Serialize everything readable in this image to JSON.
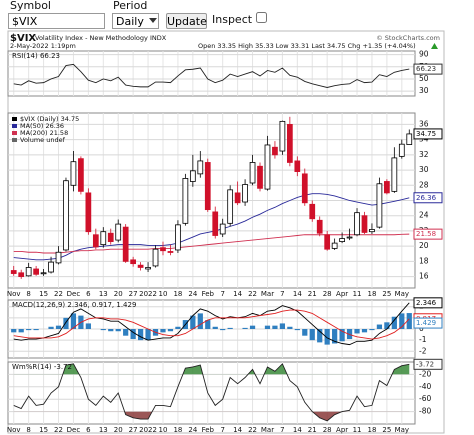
{
  "form": {
    "symbol_label": "Symbol",
    "symbol": "$VIX",
    "period_label": "Period",
    "period": "Daily",
    "button": "Update",
    "inspect": "Inspect"
  },
  "header": {
    "title": "$VIX",
    "subtitle": "Volatility Index - New Methodology",
    "exchange": "INDX",
    "copyright": "© StockCharts.com",
    "timestamp": "2-May-2022 1:19pm",
    "quote": "Open 33.35 High 35.33 Low 33.31 Last 34.75 Chg +1.35 (+4.04%)"
  },
  "chart_data": [
    {
      "type": "line",
      "title": "RSI(14) 66.23",
      "ylim": [
        22,
        96
      ],
      "yticks": [
        30,
        50,
        70,
        90
      ],
      "grid": true,
      "series": [
        {
          "color": "#222222",
          "values": [
            42,
            40,
            47,
            43,
            44,
            50,
            54,
            72,
            74,
            62,
            48,
            44,
            50,
            47,
            53,
            40,
            38,
            37,
            37,
            45,
            45,
            44,
            55,
            65,
            66,
            68,
            50,
            44,
            48,
            58,
            54,
            58,
            62,
            55,
            64,
            61,
            68,
            56,
            53,
            46,
            42,
            39,
            36,
            39,
            41,
            42,
            49,
            44,
            45,
            57,
            54,
            61,
            64,
            66.23
          ]
        }
      ]
    },
    {
      "type": "candlestick",
      "name": "$VIX (Daily) 34.75",
      "volume_label": "Volume undef",
      "up_color": "#000000",
      "down_color": "#d0102a",
      "ylim": [
        14.5,
        37.5
      ],
      "yticks": [
        16,
        18,
        20,
        22,
        24,
        26,
        28,
        30,
        32,
        34,
        36
      ],
      "grid": true,
      "categories": [
        "Nov",
        null,
        "8",
        null,
        "15",
        null,
        "22",
        null,
        "Dec",
        null,
        "6",
        null,
        "13",
        null,
        "20",
        null,
        "27",
        null,
        "2022",
        null,
        "10",
        null,
        "18",
        null,
        "24",
        null,
        "Feb",
        null,
        "7",
        null,
        "14",
        null,
        "22",
        null,
        "Mar",
        null,
        "7",
        null,
        "14",
        null,
        "21",
        null,
        "28",
        null,
        "Apr",
        null,
        "11",
        null,
        "18",
        null,
        "25",
        null,
        "May",
        null
      ],
      "open": [
        16.8,
        16.5,
        16.1,
        17.0,
        16.4,
        16.6,
        17.8,
        19.5,
        28.0,
        31.5,
        27.0,
        21.5,
        20.2,
        21.7,
        20.8,
        22.5,
        18.2,
        17.5,
        17.0,
        17.4,
        19.8,
        19.3,
        19.5,
        23.0,
        28.5,
        29.5,
        31.0,
        24.5,
        21.6,
        23.0,
        27.0,
        25.8,
        28.3,
        30.5,
        27.5,
        33.0,
        32.5,
        36.0,
        31.2,
        29.5,
        25.5,
        23.4,
        21.5,
        19.7,
        20.6,
        21.1,
        21.5,
        24.0,
        21.9,
        22.5,
        28.5,
        27.2,
        31.8,
        33.35
      ],
      "high": [
        17.4,
        16.9,
        17.8,
        17.4,
        17.0,
        18.6,
        20.0,
        29.0,
        32.5,
        31.8,
        27.6,
        22.3,
        22.5,
        22.3,
        23.5,
        22.9,
        18.6,
        17.9,
        17.9,
        20.1,
        20.6,
        20.2,
        23.4,
        29.5,
        32.0,
        32.5,
        31.5,
        25.2,
        23.6,
        28.0,
        28.5,
        28.8,
        32.0,
        31.0,
        34.5,
        33.8,
        36.5,
        37.0,
        31.8,
        30.2,
        26.0,
        23.9,
        22.0,
        21.0,
        21.8,
        22.3,
        25.0,
        24.5,
        23.0,
        29.0,
        28.8,
        33.0,
        34.0,
        35.33
      ],
      "low": [
        16.1,
        15.7,
        16.0,
        16.1,
        16.1,
        16.4,
        17.6,
        19.3,
        27.2,
        26.8,
        21.5,
        19.6,
        19.8,
        20.2,
        20.5,
        17.8,
        17.3,
        16.8,
        16.6,
        17.2,
        18.8,
        18.8,
        19.1,
        22.7,
        27.8,
        29.0,
        24.5,
        21.0,
        21.2,
        22.6,
        25.4,
        25.3,
        28.0,
        27.2,
        27.3,
        31.5,
        32.0,
        30.5,
        29.2,
        25.3,
        23.2,
        21.3,
        19.4,
        19.5,
        20.4,
        20.8,
        21.3,
        21.6,
        21.6,
        22.3,
        26.8,
        27.0,
        31.5,
        33.31
      ],
      "close": [
        16.4,
        16.0,
        17.2,
        16.3,
        16.5,
        17.9,
        19.2,
        28.6,
        31.1,
        27.2,
        21.9,
        19.9,
        21.9,
        20.6,
        22.9,
        18.0,
        17.7,
        17.2,
        17.2,
        19.6,
        19.4,
        19.2,
        22.8,
        28.9,
        29.9,
        31.2,
        24.8,
        21.4,
        22.9,
        27.4,
        25.7,
        28.1,
        31.0,
        27.6,
        33.3,
        32.0,
        36.4,
        31.0,
        29.8,
        25.7,
        23.6,
        21.7,
        19.6,
        20.4,
        21.0,
        21.2,
        24.4,
        21.8,
        22.2,
        28.2,
        27.0,
        31.6,
        33.4,
        34.75
      ],
      "series": [
        {
          "name": "MA(50) 26.36",
          "color": "#2a2a9a",
          "values": [
            18.5,
            18.4,
            18.3,
            18.2,
            18.2,
            18.3,
            18.4,
            18.8,
            19.3,
            19.6,
            19.8,
            19.9,
            20.0,
            20.1,
            20.2,
            20.2,
            20.2,
            20.2,
            20.1,
            20.1,
            20.1,
            20.2,
            20.4,
            20.8,
            21.2,
            21.6,
            21.8,
            22.0,
            22.3,
            22.6,
            22.9,
            23.3,
            23.8,
            24.2,
            24.7,
            25.1,
            25.6,
            26.0,
            26.4,
            26.7,
            26.9,
            26.9,
            26.8,
            26.6,
            26.3,
            26.0,
            25.8,
            25.6,
            25.4,
            25.5,
            25.7,
            25.9,
            26.1,
            26.36
          ]
        },
        {
          "name": "MA(200) 21.58",
          "color": "#d03050",
          "values": [
            19.3,
            19.3,
            19.2,
            19.2,
            19.1,
            19.1,
            19.1,
            19.2,
            19.3,
            19.4,
            19.4,
            19.5,
            19.5,
            19.6,
            19.6,
            19.6,
            19.6,
            19.6,
            19.6,
            19.7,
            19.7,
            19.7,
            19.8,
            19.9,
            20.0,
            20.1,
            20.2,
            20.3,
            20.4,
            20.5,
            20.6,
            20.7,
            20.8,
            20.9,
            21.0,
            21.1,
            21.2,
            21.3,
            21.4,
            21.5,
            21.5,
            21.5,
            21.5,
            21.5,
            21.5,
            21.5,
            21.5,
            21.5,
            21.5,
            21.5,
            21.5,
            21.5,
            21.55,
            21.58
          ]
        }
      ]
    },
    {
      "type": "macd",
      "title": "MACD(12,26,9) 2.346, 0.917, 1.429",
      "ylim": [
        -2.6,
        2.6
      ],
      "yticks": [
        -2,
        -1,
        0,
        1,
        2
      ],
      "grid": true,
      "series": [
        {
          "color": "#000000",
          "values": [
            -0.9,
            -1.0,
            -0.9,
            -0.9,
            -0.8,
            -0.6,
            -0.4,
            0.6,
            1.5,
            1.8,
            1.4,
            1.0,
            0.9,
            0.7,
            0.7,
            0.2,
            -0.3,
            -0.7,
            -1.0,
            -0.9,
            -0.8,
            -0.8,
            -0.4,
            0.4,
            1.2,
            1.8,
            1.6,
            1.2,
            0.9,
            1.1,
            1.0,
            1.1,
            1.4,
            1.2,
            1.6,
            1.7,
            2.1,
            1.9,
            1.6,
            1.0,
            0.4,
            -0.2,
            -0.8,
            -1.1,
            -1.3,
            -1.4,
            -1.1,
            -1.1,
            -1.0,
            -0.4,
            0.0,
            0.8,
            1.6,
            2.346
          ]
        },
        {
          "color": "#e02020",
          "values": [
            -0.6,
            -0.7,
            -0.8,
            -0.8,
            -0.8,
            -0.8,
            -0.7,
            -0.4,
            0.1,
            0.6,
            0.9,
            1.0,
            1.0,
            0.9,
            0.9,
            0.8,
            0.6,
            0.3,
            0.0,
            -0.3,
            -0.5,
            -0.6,
            -0.6,
            -0.4,
            0.0,
            0.4,
            0.8,
            1.0,
            1.0,
            1.0,
            1.0,
            1.0,
            1.1,
            1.2,
            1.3,
            1.4,
            1.6,
            1.7,
            1.7,
            1.6,
            1.4,
            1.0,
            0.6,
            0.2,
            -0.2,
            -0.5,
            -0.7,
            -0.8,
            -0.9,
            -0.8,
            -0.6,
            -0.3,
            0.2,
            0.917
          ]
        }
      ],
      "histogram": {
        "color": "#2f7fc0",
        "values": [
          -0.3,
          -0.3,
          -0.1,
          -0.1,
          0.0,
          0.2,
          0.3,
          1.0,
          1.4,
          1.2,
          0.5,
          0.0,
          -0.1,
          -0.2,
          -0.2,
          -0.6,
          -0.9,
          -1.0,
          -1.0,
          -0.6,
          -0.3,
          -0.2,
          0.2,
          0.8,
          1.2,
          1.4,
          0.8,
          0.2,
          -0.1,
          0.1,
          0.0,
          0.1,
          0.3,
          0.0,
          0.3,
          0.3,
          0.5,
          0.2,
          -0.1,
          -0.6,
          -1.0,
          -1.2,
          -1.4,
          -1.3,
          -1.1,
          -0.9,
          -0.4,
          -0.3,
          -0.1,
          0.4,
          0.6,
          1.1,
          1.4,
          1.429
        ]
      }
    },
    {
      "type": "line",
      "title": "Wm%R(14) -3.72",
      "ylim": [
        -100,
        0
      ],
      "yticks": [
        -20,
        -40,
        -60,
        -80
      ],
      "grid": true,
      "overbought_color": "#3a8a3a",
      "oversold_color": "#8a3a3a",
      "categories": [
        "Nov",
        null,
        "8",
        null,
        "15",
        null,
        "22",
        null,
        "Dec",
        null,
        "6",
        null,
        "13",
        null,
        "20",
        null,
        "27",
        null,
        "2022",
        null,
        "10",
        null,
        "18",
        null,
        "24",
        null,
        "Feb",
        null,
        "7",
        null,
        "14",
        null,
        "22",
        null,
        "Mar",
        null,
        "7",
        null,
        "14",
        null,
        "21",
        null,
        "28",
        null,
        "Apr",
        null,
        "11",
        null,
        "18",
        null,
        "25",
        null,
        "May",
        null
      ],
      "series": [
        {
          "color": "#222222",
          "values": [
            -70,
            -75,
            -55,
            -70,
            -68,
            -50,
            -40,
            -5,
            -3,
            -25,
            -60,
            -70,
            -55,
            -65,
            -50,
            -85,
            -90,
            -92,
            -92,
            -70,
            -70,
            -72,
            -40,
            -10,
            -8,
            -5,
            -50,
            -70,
            -60,
            -25,
            -35,
            -25,
            -12,
            -35,
            -8,
            -15,
            -3,
            -30,
            -40,
            -65,
            -80,
            -90,
            -95,
            -85,
            -80,
            -78,
            -55,
            -72,
            -70,
            -30,
            -38,
            -12,
            -6,
            -3.72
          ]
        }
      ]
    }
  ]
}
